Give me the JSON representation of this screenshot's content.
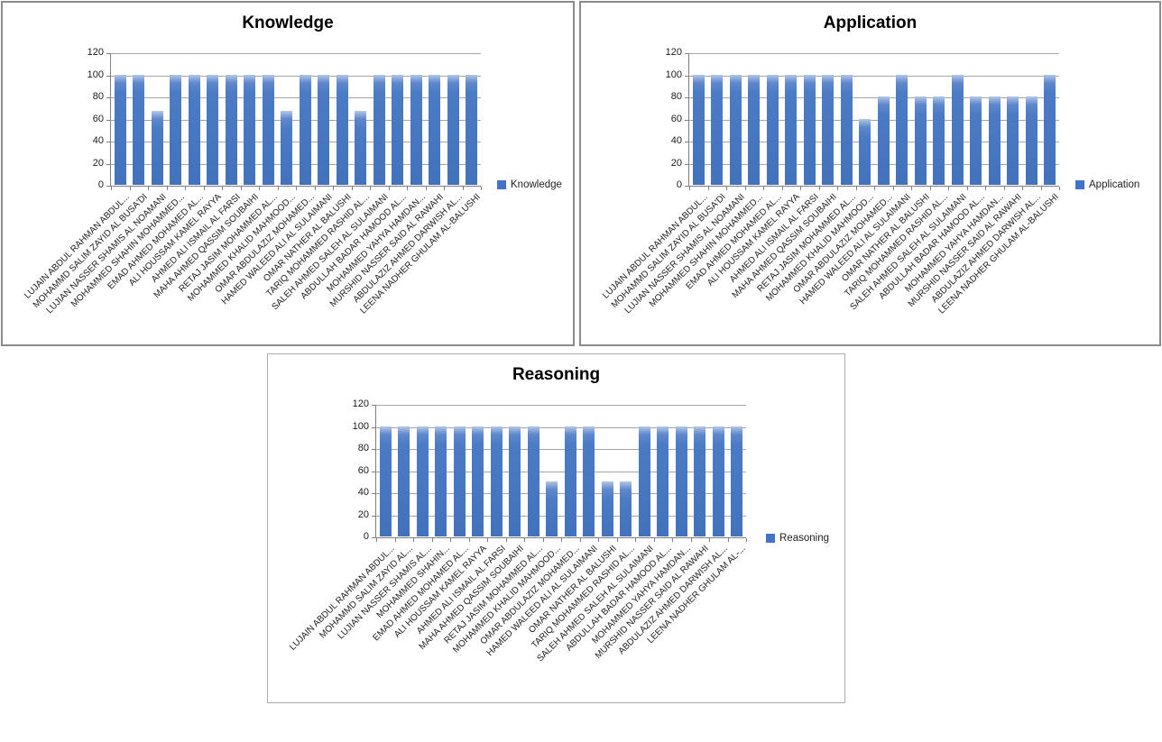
{
  "colors": {
    "bar_fill": "#4C7BC6",
    "bar_highlight": "#B3C6E8",
    "legend_swatch": "#4472C4",
    "gridline": "#A6A6A6",
    "axis": "#7F7F7F",
    "panel_border_top_charts": "#8C8C8C",
    "panel_border_bottom_chart": "#ABABAB",
    "text": "#1A1A1A"
  },
  "chart_data": [
    {
      "type": "bar",
      "title": "Knowledge",
      "legend": "Knowledge",
      "legend_position": "right",
      "grid": true,
      "ylim": [
        0,
        120
      ],
      "yticks": [
        0,
        20,
        40,
        60,
        80,
        100,
        120
      ],
      "xlabel": "",
      "ylabel": "",
      "categories": [
        "LUJAIN ABDUL RAHMAN ABDUL...",
        "MOHAMMD SALIM ZAYID AL BUSA'DI",
        "LUJIAN NASSER SHAMIS AL NOAMANI",
        "MOHAMMED SHAHIN MOHAMMED...",
        "EMAD AHMED MOHAMED AL...",
        "ALI HOUSSAM KAMEL RAYYA",
        "AHMED ALI ISMAIL AL FARSI",
        "MAHA AHMED QASSIM SOUBAIHI",
        "RETAJ JASIM MOHAMMED AL...",
        "MOHAMMED KHALID MAHMOOD...",
        "OMAR ABDULAZIZ MOHAMED...",
        "HAMED WALEED ALI AL SULAIMANI",
        "OMAR NATHER AL BALUSHI",
        "TARIQ MOHAMMED RASHID AL...",
        "SALEH AHMED SALEH AL SULAIMANI",
        "ABDULLAH BADAR HAMOOD AL...",
        "MOHAMMED YAHYA HAMDAN...",
        "MURSHID NASSER SAID AL RAWAHI",
        "ABDULAZIZ AHMED DARWISH AL...",
        "LEENA NADHER GHULAM AL-BALUSHI"
      ],
      "values": [
        100,
        100,
        67,
        100,
        100,
        100,
        100,
        100,
        100,
        67,
        100,
        100,
        100,
        67,
        100,
        100,
        100,
        100,
        100,
        100
      ]
    },
    {
      "type": "bar",
      "title": "Application",
      "legend": "Application",
      "legend_position": "right",
      "grid": true,
      "ylim": [
        0,
        120
      ],
      "yticks": [
        0,
        20,
        40,
        60,
        80,
        100,
        120
      ],
      "xlabel": "",
      "ylabel": "",
      "categories": [
        "LUJAIN ABDUL RAHMAN ABDUL...",
        "MOHAMMD SALIM ZAYID AL BUSA'DI",
        "LUJIAN NASSER SHAMIS AL NOAMANI",
        "MOHAMMED SHAHIN MOHAMMED...",
        "EMAD AHMED MOHAMED AL...",
        "ALI HOUSSAM KAMEL RAYYA",
        "AHMED ALI ISMAIL AL FARSI",
        "MAHA AHMED QASSIM SOUBAIHI",
        "RETAJ JASIM MOHAMMED AL...",
        "MOHAMMED KHALID MAHMOOD...",
        "OMAR ABDULAZIZ MOHAMED...",
        "HAMED WALEED ALI AL SULAIMANI",
        "OMAR NATHER AL BALUSHI",
        "TARIQ MOHAMMED RASHID AL...",
        "SALEH AHMED SALEH AL SULAIMANI",
        "ABDULLAH BADAR HAMOOD AL...",
        "MOHAMMED YAHYA HAMDAN...",
        "MURSHID NASSER SAID AL RAWAHI",
        "ABDULAZIZ AHMED DARWISH AL...",
        "LEENA NADHER GHULAM AL-BALUSHI"
      ],
      "values": [
        100,
        100,
        100,
        100,
        100,
        100,
        100,
        100,
        100,
        60,
        80,
        100,
        80,
        80,
        100,
        80,
        80,
        80,
        80,
        100
      ]
    },
    {
      "type": "bar",
      "title": "Reasoning",
      "legend": "Reasoning",
      "legend_position": "right",
      "grid": true,
      "ylim": [
        0,
        120
      ],
      "yticks": [
        0,
        20,
        40,
        60,
        80,
        100,
        120
      ],
      "xlabel": "",
      "ylabel": "",
      "categories": [
        "LUJAIN ABDUL RAHMAN ABDUL...",
        "MOHAMMD SALIM ZAYID AL...",
        "LUJIAN NASSER SHAMIS AL...",
        "MOHAMMED SHAHIN...",
        "EMAD AHMED MOHAMED AL...",
        "ALI HOUSSAM KAMEL RAYYA",
        "AHMED ALI ISMAIL AL FARSI",
        "MAHA AHMED QASSIM SOUBAIHI",
        "RETAJ JASIM MOHAMMED AL...",
        "MOHAMMED KHALID MAHMOOD...",
        "OMAR ABDULAZIZ MOHAMED...",
        "HAMED WALEED ALI AL SULAIMANI",
        "OMAR NATHER AL BALUSHI",
        "TARIQ MOHAMMED RASHID AL...",
        "SALEH AHMED SALEH AL SULAIMANI",
        "ABDULLAH BADAR HAMOOD AL...",
        "MOHAMMED YAHYA HAMDAN...",
        "MURSHID NASSER SAID AL RAWAHI",
        "ABDULAZIZ AHMED DARWISH AL...",
        "LEENA NADHER GHULAM AL-..."
      ],
      "values": [
        100,
        100,
        100,
        100,
        100,
        100,
        100,
        100,
        100,
        50,
        100,
        100,
        50,
        50,
        100,
        100,
        100,
        100,
        100,
        100
      ]
    }
  ]
}
